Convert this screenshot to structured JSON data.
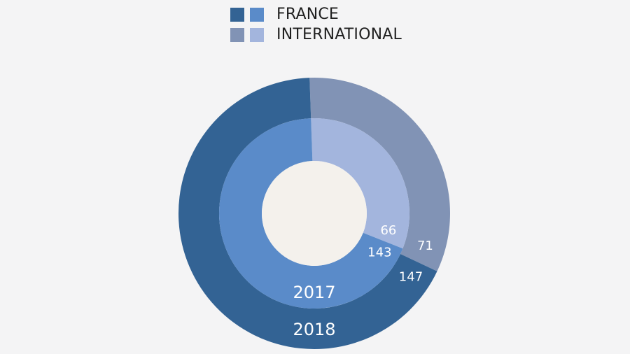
{
  "chart_data": {
    "type": "pie",
    "subtype": "nested-donut",
    "legend": {
      "placement": "top-center",
      "entries": [
        {
          "label": "FRANCE",
          "colors": [
            "#336394",
            "#5a8bc9"
          ]
        },
        {
          "label": "INTERNATIONAL",
          "colors": [
            "#8193b5",
            "#a3b5dd"
          ]
        }
      ]
    },
    "rings": [
      {
        "year_label": "2018",
        "position": "outer",
        "slices": [
          {
            "category": "FRANCE",
            "value": 147,
            "label": "147",
            "color": "#336394"
          },
          {
            "category": "INTERNATIONAL",
            "value": 71,
            "label": "71",
            "color": "#8193b5"
          }
        ]
      },
      {
        "year_label": "2017",
        "position": "inner",
        "slices": [
          {
            "category": "FRANCE",
            "value": 143,
            "label": "143",
            "color": "#5a8bc9"
          },
          {
            "category": "INTERNATIONAL",
            "value": 66,
            "label": "66",
            "color": "#a3b5dd"
          }
        ]
      }
    ],
    "center_color": "#f4f1ec"
  }
}
